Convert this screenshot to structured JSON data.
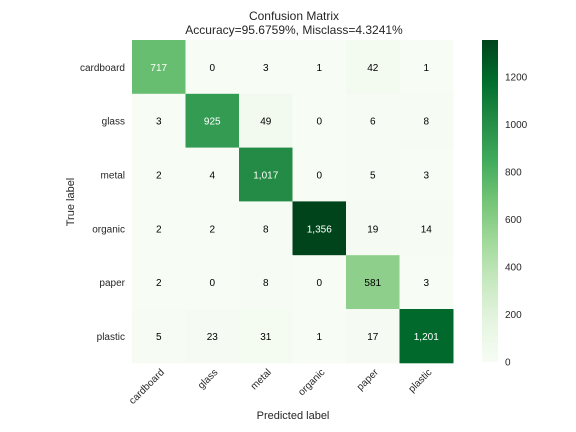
{
  "chart_data": {
    "type": "heatmap",
    "title": "Confusion Matrix",
    "subtitle": "Accuracy=95.6759%, Misclass=4.3241%",
    "xlabel": "Predicted label",
    "ylabel": "True label",
    "x_categories": [
      "cardboard",
      "glass",
      "metal",
      "organic",
      "paper",
      "plastic"
    ],
    "y_categories": [
      "cardboard",
      "glass",
      "metal",
      "organic",
      "paper",
      "plastic"
    ],
    "matrix": [
      [
        717,
        0,
        3,
        1,
        42,
        1
      ],
      [
        3,
        925,
        49,
        0,
        6,
        8
      ],
      [
        2,
        4,
        1017,
        0,
        5,
        3
      ],
      [
        2,
        2,
        8,
        1356,
        19,
        14
      ],
      [
        2,
        0,
        8,
        0,
        581,
        3
      ],
      [
        5,
        23,
        31,
        1,
        17,
        1201
      ]
    ],
    "cell_labels": [
      [
        "717",
        "0",
        "3",
        "1",
        "42",
        "1"
      ],
      [
        "3",
        "925",
        "49",
        "0",
        "6",
        "8"
      ],
      [
        "2",
        "4",
        "1,017",
        "0",
        "5",
        "3"
      ],
      [
        "2",
        "2",
        "8",
        "1,356",
        "19",
        "14"
      ],
      [
        "2",
        "0",
        "8",
        "0",
        "581",
        "3"
      ],
      [
        "5",
        "23",
        "31",
        "1",
        "17",
        "1,201"
      ]
    ],
    "colormap": "Greens",
    "colorbar": {
      "min": 0,
      "max": 1356,
      "ticks": [
        0,
        200,
        400,
        600,
        800,
        1000,
        1200
      ]
    },
    "colors": {
      "low": "#f7fcf5",
      "high": "#00441b"
    }
  }
}
